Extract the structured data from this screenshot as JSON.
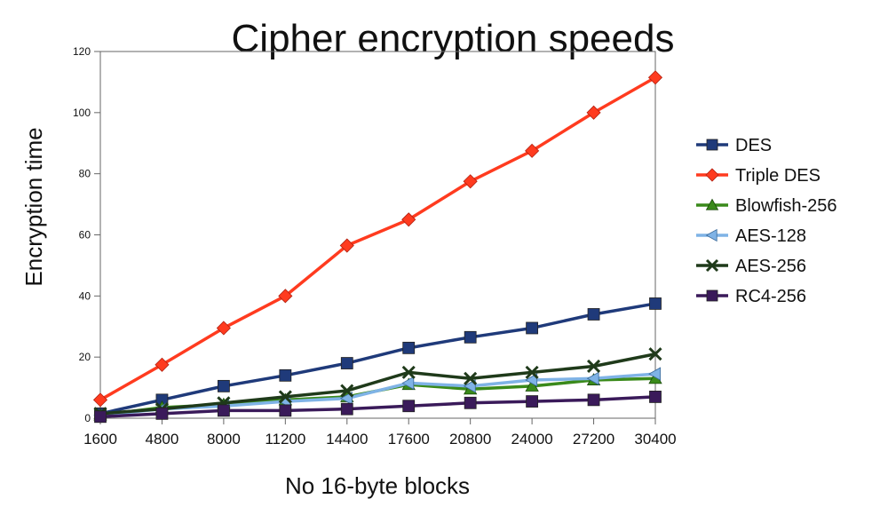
{
  "chart_data": {
    "type": "line",
    "title": "Cipher encryption speeds",
    "xlabel": "No 16-byte blocks",
    "ylabel": "Encryption time",
    "categories": [
      "1600",
      "4800",
      "8000",
      "11200",
      "14400",
      "17600",
      "20800",
      "24000",
      "27200",
      "30400"
    ],
    "ylim": [
      0,
      120
    ],
    "yticks": [
      0,
      20,
      40,
      60,
      80,
      100,
      120
    ],
    "grid": false,
    "legend_position": "right",
    "series": [
      {
        "name": "DES",
        "color": "#1f3a7a",
        "marker": "square",
        "values": [
          1.5,
          6,
          10.5,
          14,
          18,
          23,
          26.5,
          29.5,
          34,
          37.5
        ]
      },
      {
        "name": "Triple DES",
        "color": "#ff3b1f",
        "marker": "diamond",
        "values": [
          6,
          17.5,
          29.5,
          40,
          56.5,
          65,
          77.5,
          87.5,
          100,
          111.5
        ]
      },
      {
        "name": "Blowfish-256",
        "color": "#3a8a1a",
        "marker": "triangle-up",
        "values": [
          1,
          3.5,
          4.5,
          6,
          7,
          11,
          9.5,
          10.5,
          12.5,
          13
        ]
      },
      {
        "name": "AES-128",
        "color": "#7fb3e6",
        "marker": "triangle-left",
        "values": [
          1,
          3,
          4,
          5.5,
          6.5,
          11.5,
          10.5,
          12.5,
          13,
          14.5
        ]
      },
      {
        "name": "AES-256",
        "color": "#1f3a1a",
        "marker": "x",
        "values": [
          1.5,
          3,
          5,
          7,
          9,
          15,
          13,
          15,
          17,
          21
        ]
      },
      {
        "name": "RC4-256",
        "color": "#3a1a5a",
        "marker": "square",
        "values": [
          0.5,
          1.5,
          2.5,
          2.5,
          3,
          4,
          5,
          5.5,
          6,
          7
        ]
      }
    ]
  }
}
